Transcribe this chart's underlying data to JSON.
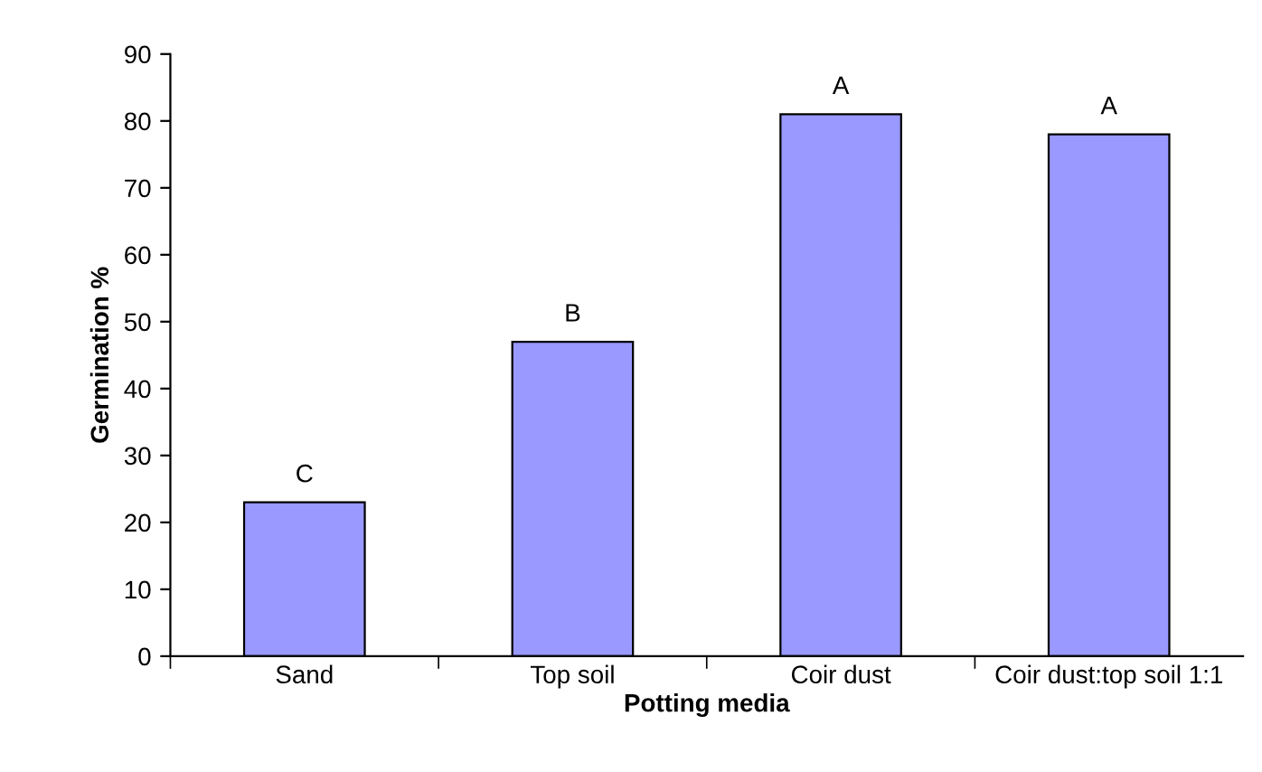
{
  "chart_data": {
    "type": "bar",
    "xlabel": "Potting media",
    "ylabel": "Germination %",
    "categories": [
      "Sand",
      "Top soil",
      "Coir dust",
      "Coir dust:top soil 1:1"
    ],
    "values": [
      23,
      47,
      81,
      78
    ],
    "color": "#9999ff",
    "ylim": [
      0,
      90
    ],
    "yticks": [
      0,
      10,
      20,
      30,
      40,
      50,
      60,
      70,
      80,
      90
    ],
    "grid": false,
    "legend": false,
    "annotations": [
      {
        "text": "C",
        "x": "Sand",
        "y": 23
      },
      {
        "text": "B",
        "x": "Top soil",
        "y": 47
      },
      {
        "text": "A",
        "x": "Coir dust",
        "y": 81
      },
      {
        "text": "A",
        "x": "Coir dust:top soil 1:1",
        "y": 78
      }
    ]
  }
}
